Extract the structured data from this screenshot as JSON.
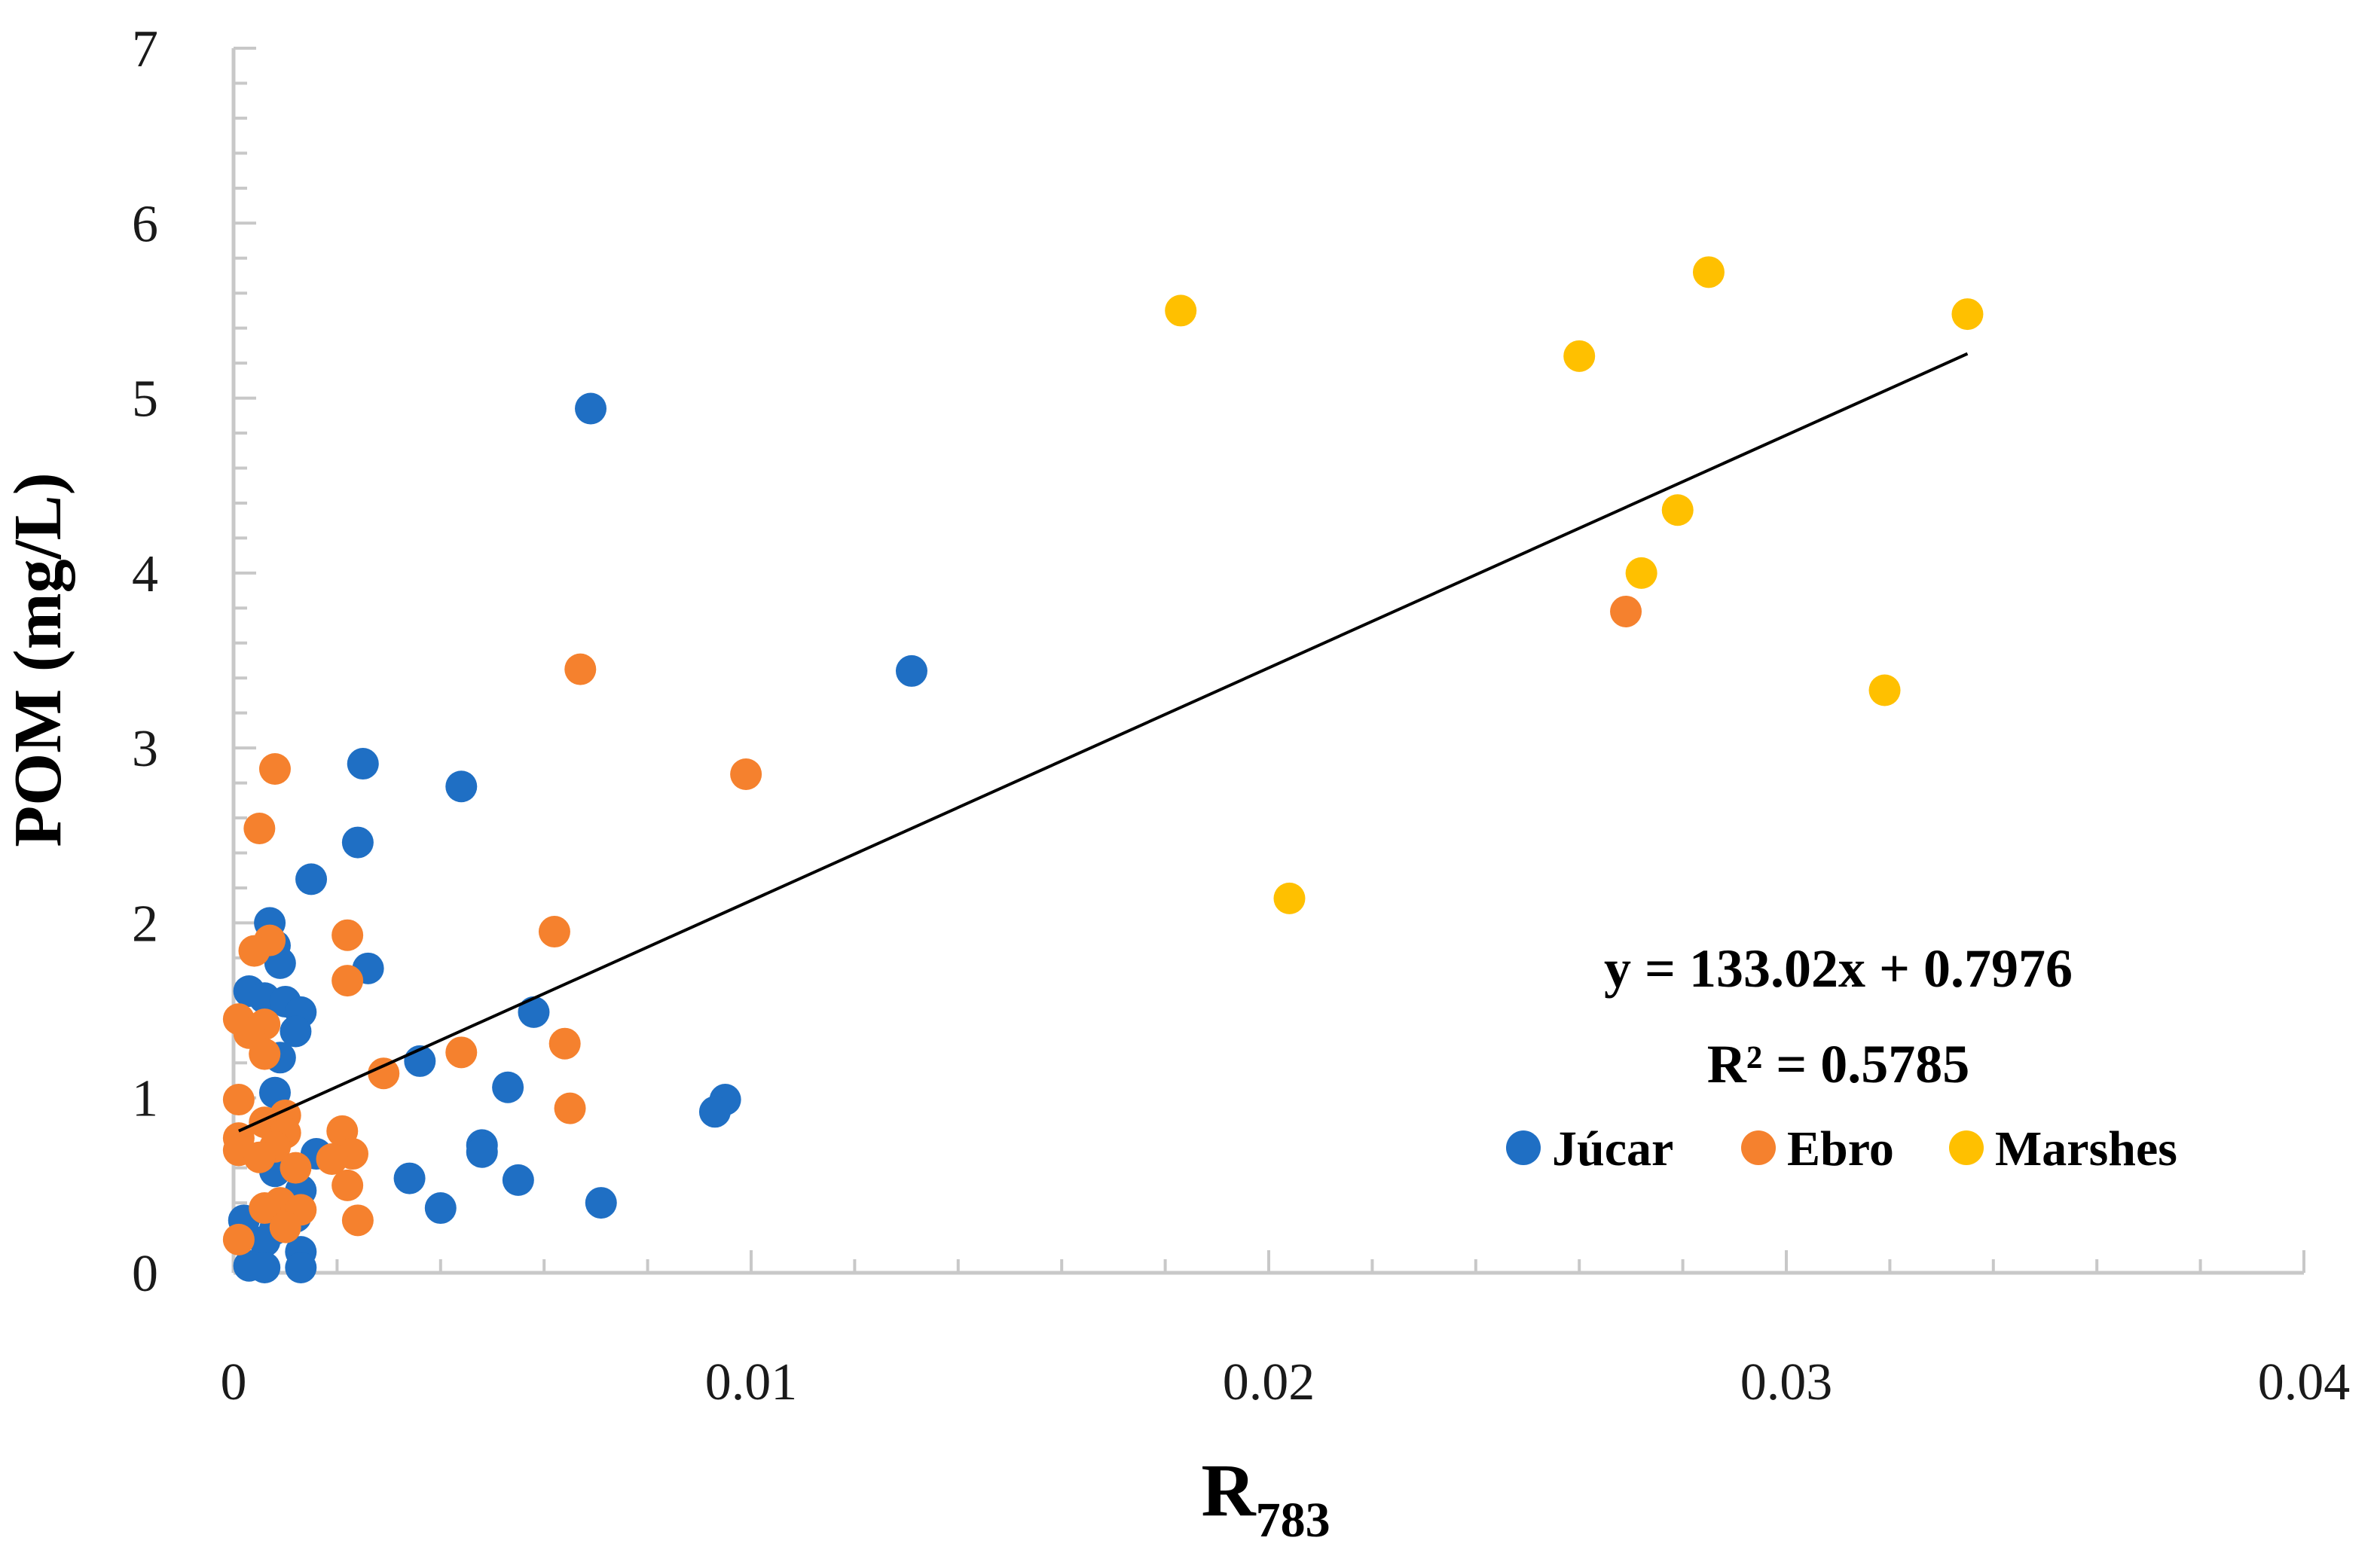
{
  "chart_data": {
    "type": "scatter",
    "title": "",
    "xlabel_main": "R",
    "xlabel_sub": "783",
    "ylabel": "POM (mg/L)",
    "xlim": [
      0,
      0.04
    ],
    "ylim": [
      0,
      7
    ],
    "x_ticks": [
      0,
      0.01,
      0.02,
      0.03,
      0.04
    ],
    "x_tick_labels": [
      "0",
      "0.01",
      "0.02",
      "0.03",
      "0.04"
    ],
    "y_ticks": [
      0,
      1,
      2,
      3,
      4,
      5,
      6,
      7
    ],
    "y_tick_labels": [
      "0",
      "1",
      "2",
      "3",
      "4",
      "5",
      "6",
      "7"
    ],
    "grid": false,
    "legend_position": "bottom-right",
    "series": [
      {
        "name": "Júcar",
        "color": "#1f6fc4",
        "points": [
          [
            0.0069,
            4.94
          ],
          [
            0.0131,
            3.44
          ],
          [
            0.0025,
            2.91
          ],
          [
            0.0044,
            2.78
          ],
          [
            0.0024,
            2.46
          ],
          [
            0.0015,
            2.25
          ],
          [
            0.0007,
            2.0
          ],
          [
            0.0008,
            1.87
          ],
          [
            0.0009,
            1.77
          ],
          [
            0.0026,
            1.74
          ],
          [
            0.0003,
            1.61
          ],
          [
            0.0006,
            1.57
          ],
          [
            0.001,
            1.55
          ],
          [
            0.0013,
            1.49
          ],
          [
            0.0058,
            1.49
          ],
          [
            0.0012,
            1.38
          ],
          [
            0.0009,
            1.23
          ],
          [
            0.0036,
            1.21
          ],
          [
            0.0053,
            1.06
          ],
          [
            0.0008,
            1.03
          ],
          [
            0.0095,
            0.99
          ],
          [
            0.0093,
            0.92
          ],
          [
            0.0048,
            0.73
          ],
          [
            0.0048,
            0.69
          ],
          [
            0.0016,
            0.68
          ],
          [
            0.0008,
            0.58
          ],
          [
            0.0034,
            0.54
          ],
          [
            0.0055,
            0.53
          ],
          [
            0.0013,
            0.47
          ],
          [
            0.0071,
            0.4
          ],
          [
            0.004,
            0.37
          ],
          [
            0.0012,
            0.32
          ],
          [
            0.0002,
            0.3
          ],
          [
            0.0008,
            0.25
          ],
          [
            0.0006,
            0.18
          ],
          [
            0.0013,
            0.12
          ],
          [
            0.0003,
            0.04
          ],
          [
            0.0006,
            0.03
          ],
          [
            0.0013,
            0.03
          ]
        ]
      },
      {
        "name": "Ebro",
        "color": "#f5812e",
        "points": [
          [
            0.0269,
            3.78
          ],
          [
            0.0067,
            3.45
          ],
          [
            0.0008,
            2.88
          ],
          [
            0.0099,
            2.85
          ],
          [
            0.0005,
            2.54
          ],
          [
            0.0062,
            1.95
          ],
          [
            0.0022,
            1.93
          ],
          [
            0.0007,
            1.9
          ],
          [
            0.0004,
            1.84
          ],
          [
            0.0022,
            1.67
          ],
          [
            0.0001,
            1.45
          ],
          [
            0.0006,
            1.42
          ],
          [
            0.0003,
            1.37
          ],
          [
            0.0064,
            1.31
          ],
          [
            0.0044,
            1.26
          ],
          [
            0.0006,
            1.25
          ],
          [
            0.0029,
            1.14
          ],
          [
            0.0001,
            0.99
          ],
          [
            0.0065,
            0.94
          ],
          [
            0.001,
            0.9
          ],
          [
            0.0006,
            0.86
          ],
          [
            0.0021,
            0.81
          ],
          [
            0.001,
            0.8
          ],
          [
            0.0001,
            0.77
          ],
          [
            0.0008,
            0.72
          ],
          [
            0.0001,
            0.7
          ],
          [
            0.0023,
            0.68
          ],
          [
            0.0005,
            0.66
          ],
          [
            0.0019,
            0.65
          ],
          [
            0.0012,
            0.6
          ],
          [
            0.0022,
            0.5
          ],
          [
            0.0009,
            0.4
          ],
          [
            0.0006,
            0.37
          ],
          [
            0.0013,
            0.36
          ],
          [
            0.0024,
            0.3
          ],
          [
            0.001,
            0.26
          ],
          [
            0.0001,
            0.19
          ]
        ]
      },
      {
        "name": "Marshes",
        "color": "#ffc000",
        "points": [
          [
            0.0183,
            5.5
          ],
          [
            0.0285,
            5.72
          ],
          [
            0.0335,
            5.48
          ],
          [
            0.026,
            5.24
          ],
          [
            0.0279,
            4.36
          ],
          [
            0.0272,
            4.0
          ],
          [
            0.0319,
            3.33
          ],
          [
            0.0204,
            2.14
          ]
        ]
      }
    ],
    "trendline": {
      "slope": 133.02,
      "intercept": 0.7976,
      "x_range": [
        0.0001,
        0.0335
      ],
      "color": "#000000"
    },
    "annotations": {
      "equation": "y = 133.02x + 0.7976",
      "r_squared": "R² = 0.5785"
    }
  }
}
